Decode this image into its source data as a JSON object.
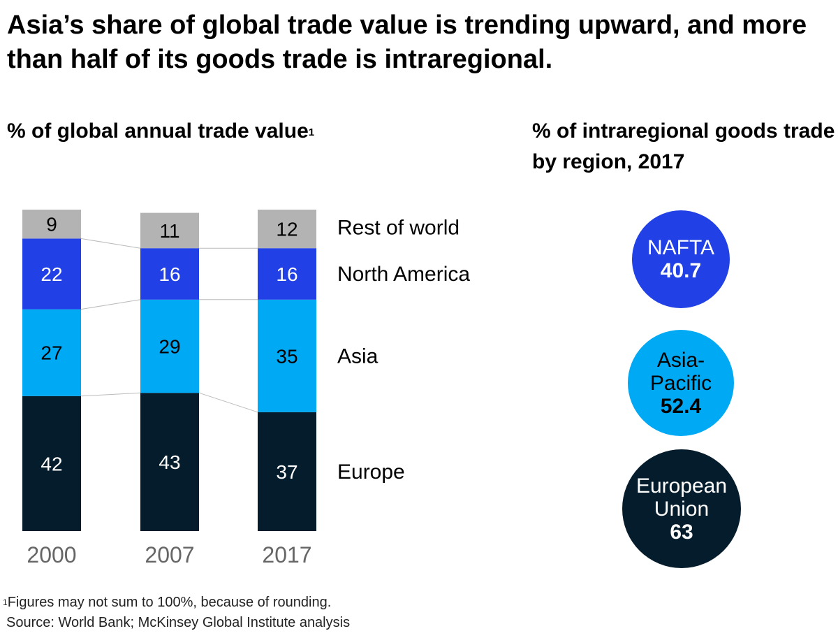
{
  "title": "Asia’s share of global trade value is trending upward, and more than half of its goods trade is intraregional.",
  "left_subtitle": "% of global annual trade value",
  "left_subtitle_footnote_mark": "1",
  "right_subtitle": "% of intraregional goods trade by region, 2017",
  "colors": {
    "rest_of_world": "#b3b3b3",
    "north_america": "#2140e6",
    "asia": "#00a9f4",
    "europe": "#051c2c"
  },
  "chart_data": [
    {
      "type": "bar",
      "stacked": true,
      "title": "% of global annual trade value",
      "categories": [
        "2000",
        "2007",
        "2017"
      ],
      "series": [
        {
          "name": "Europe",
          "values": [
            42,
            43,
            37
          ],
          "color": "#051c2c",
          "label_color": "#ffffff"
        },
        {
          "name": "Asia",
          "values": [
            27,
            29,
            35
          ],
          "color": "#00a9f4",
          "label_color": "#000000"
        },
        {
          "name": "North America",
          "values": [
            22,
            16,
            16
          ],
          "color": "#2140e6",
          "label_color": "#ffffff"
        },
        {
          "name": "Rest of world",
          "values": [
            9,
            11,
            12
          ],
          "color": "#b3b3b3",
          "label_color": "#000000"
        }
      ],
      "legend": "right"
    },
    {
      "type": "bubble",
      "title": "% of intraregional goods trade by region, 2017",
      "items": [
        {
          "name": "NAFTA",
          "value": 40.7
        },
        {
          "name": "Asia-Pacific",
          "value": 52.4
        },
        {
          "name": "European Union",
          "value": 63
        }
      ]
    }
  ],
  "bubbles": [
    {
      "label_lines": [
        "NAFTA"
      ],
      "value": "40.7"
    },
    {
      "label_lines": [
        "Asia-",
        "Pacific"
      ],
      "value": "52.4"
    },
    {
      "label_lines": [
        "European",
        "Union"
      ],
      "value": "63"
    }
  ],
  "footnote": {
    "mark": "1",
    "note": "Figures may not sum to 100%, because of rounding.",
    "source": "Source: World Bank; McKinsey Global Institute analysis"
  }
}
